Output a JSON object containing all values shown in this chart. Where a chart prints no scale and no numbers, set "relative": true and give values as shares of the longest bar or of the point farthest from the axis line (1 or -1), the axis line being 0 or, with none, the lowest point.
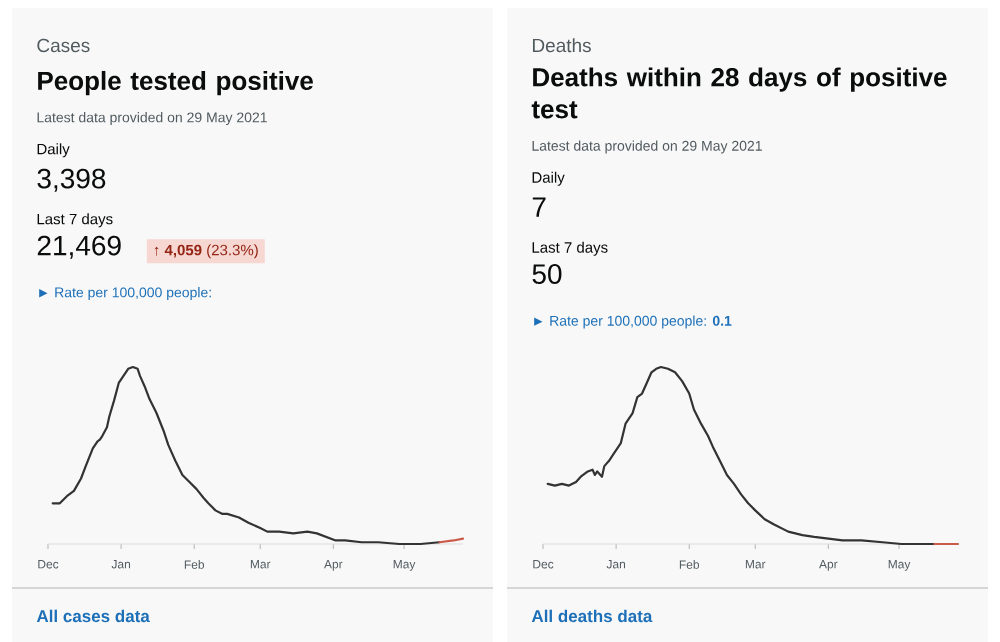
{
  "chart_data": [
    {
      "type": "line",
      "title": "People tested positive",
      "subtitle": "Latest data provided on 29 May 2021",
      "annotations": [
        "Cases",
        "Daily",
        "3,398",
        "Last 7 days",
        "21,469",
        "► Rate per 100,000 people:",
        "All cases data",
        "↑ **4,059** (23.3%)"
      ],
      "relative": true,
      "xlim": [
        "2020-12-01",
        "2021-05-26"
      ],
      "xticks": [
        {
          "value": "2020-12-01",
          "label": "Dec"
        },
        {
          "value": "2021-01-01",
          "label": "Jan"
        },
        {
          "value": "2021-02-01",
          "label": "Feb"
        },
        {
          "value": "2021-03-01",
          "label": "Mar"
        },
        {
          "value": "2021-04-01",
          "label": "Apr"
        },
        {
          "value": "2021-05-01",
          "label": "May"
        }
      ],
      "series": [
        {
          "color": "#333333",
          "x": [
            "2020-12-03",
            "2020-12-06",
            "2020-12-09",
            "2020-12-12",
            "2020-12-15",
            "2020-12-17",
            "2020-12-20",
            "2020-12-22",
            "2020-12-23",
            "2020-12-24",
            "2020-12-26",
            "2020-12-27",
            "2020-12-29",
            "2020-12-31",
            "2021-01-02",
            "2021-01-04",
            "2021-01-06",
            "2021-01-08",
            "2021-01-09",
            "2021-01-11",
            "2021-01-13",
            "2021-01-16",
            "2021-01-19",
            "2021-01-21",
            "2021-01-24",
            "2021-01-27",
            "2021-01-30",
            "2021-02-02",
            "2021-02-05",
            "2021-02-07",
            "2021-02-10",
            "2021-02-13",
            "2021-02-15",
            "2021-02-20",
            "2021-02-24",
            "2021-03-01",
            "2021-03-04",
            "2021-03-09",
            "2021-03-15",
            "2021-03-21",
            "2021-03-25",
            "2021-03-29",
            "2021-04-02",
            "2021-04-06",
            "2021-04-13",
            "2021-04-20",
            "2021-04-29",
            "2021-05-08",
            "2021-05-16"
          ],
          "values": [
            0.23,
            0.23,
            0.27,
            0.3,
            0.37,
            0.44,
            0.54,
            0.58,
            0.59,
            0.61,
            0.66,
            0.72,
            0.81,
            0.91,
            0.95,
            0.99,
            1,
            0.99,
            0.95,
            0.89,
            0.82,
            0.74,
            0.64,
            0.56,
            0.47,
            0.39,
            0.35,
            0.31,
            0.26,
            0.23,
            0.19,
            0.17,
            0.17,
            0.15,
            0.12,
            0.09,
            0.07,
            0.07,
            0.06,
            0.07,
            0.06,
            0.04,
            0.02,
            0.02,
            0.01,
            0.01,
            0,
            0,
            0.01
          ]
        },
        {
          "color": "#cc5a48",
          "x": [
            "2021-05-16",
            "2021-05-22",
            "2021-05-26"
          ],
          "values": [
            0.01,
            0.02,
            0.03
          ]
        }
      ]
    },
    {
      "type": "line",
      "title": "Deaths within 28 days of positive test",
      "subtitle": "Latest data provided on 29 May 2021",
      "annotations": [
        "Deaths",
        "Daily",
        "7",
        "Last 7 days",
        "50",
        "► Rate per 100,000 people: **0.1**",
        "All deaths data"
      ],
      "relative": true,
      "xlim": [
        "2020-12-01",
        "2021-05-26"
      ],
      "xticks": [
        {
          "value": "2020-12-01",
          "label": "Dec"
        },
        {
          "value": "2021-01-01",
          "label": "Jan"
        },
        {
          "value": "2021-02-01",
          "label": "Feb"
        },
        {
          "value": "2021-03-01",
          "label": "Mar"
        },
        {
          "value": "2021-04-01",
          "label": "Apr"
        },
        {
          "value": "2021-05-01",
          "label": "May"
        }
      ],
      "series": [
        {
          "color": "#333333",
          "x": [
            "2020-12-03",
            "2020-12-06",
            "2020-12-09",
            "2020-12-12",
            "2020-12-15",
            "2020-12-17",
            "2020-12-20",
            "2020-12-22",
            "2020-12-23",
            "2020-12-24",
            "2020-12-26",
            "2020-12-27",
            "2020-12-29",
            "2020-12-31",
            "2021-01-03",
            "2021-01-05",
            "2021-01-08",
            "2021-01-10",
            "2021-01-12",
            "2021-01-14",
            "2021-01-16",
            "2021-01-18",
            "2021-01-20",
            "2021-01-23",
            "2021-01-26",
            "2021-01-29",
            "2021-02-01",
            "2021-02-03",
            "2021-02-06",
            "2021-02-09",
            "2021-02-11",
            "2021-02-14",
            "2021-02-17",
            "2021-02-20",
            "2021-02-23",
            "2021-02-26",
            "2021-03-01",
            "2021-03-05",
            "2021-03-09",
            "2021-03-15",
            "2021-03-21",
            "2021-03-26",
            "2021-04-01",
            "2021-04-07",
            "2021-04-15",
            "2021-04-24",
            "2021-05-02",
            "2021-05-10",
            "2021-05-16"
          ],
          "values": [
            0.34,
            0.33,
            0.34,
            0.33,
            0.35,
            0.38,
            0.41,
            0.42,
            0.39,
            0.41,
            0.38,
            0.44,
            0.47,
            0.51,
            0.57,
            0.68,
            0.74,
            0.83,
            0.85,
            0.91,
            0.97,
            0.99,
            1,
            0.99,
            0.97,
            0.92,
            0.85,
            0.76,
            0.68,
            0.61,
            0.55,
            0.47,
            0.39,
            0.34,
            0.28,
            0.23,
            0.19,
            0.14,
            0.11,
            0.07,
            0.05,
            0.04,
            0.03,
            0.02,
            0.02,
            0.01,
            0,
            0,
            0
          ]
        },
        {
          "color": "#cc5a48",
          "x": [
            "2021-05-16",
            "2021-05-26"
          ],
          "values": [
            0,
            0
          ]
        }
      ]
    }
  ]
}
